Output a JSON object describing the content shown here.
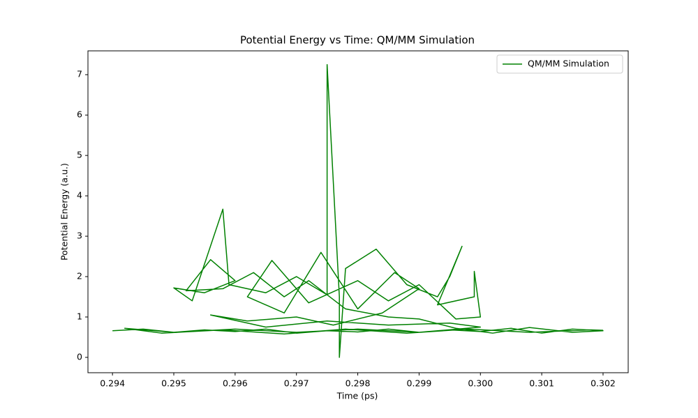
{
  "chart_data": {
    "type": "line",
    "title": "Potential Energy vs Time: QM/MM Simulation",
    "xlabel": "Time (ps)",
    "ylabel": "Potential Energy (a.u.)",
    "x": [
      0.294,
      0.2945,
      0.295,
      0.2955,
      0.296,
      0.2965,
      0.297,
      0.2975,
      0.298,
      0.2985,
      0.299,
      0.2995,
      0.3,
      0.3005,
      0.301,
      0.3015,
      0.302,
      0.3015,
      0.3008,
      0.3002,
      0.2996,
      0.299,
      0.2985,
      0.2978,
      0.2972,
      0.2968,
      0.2963,
      0.2958,
      0.2952,
      0.2956,
      0.296,
      0.2955,
      0.295,
      0.2953,
      0.2958,
      0.2959,
      0.2965,
      0.297,
      0.2975,
      0.2975,
      0.2977,
      0.2977,
      0.2978,
      0.2983,
      0.2988,
      0.2993,
      0.2995,
      0.2997,
      0.2993,
      0.2999,
      0.2999,
      0.3,
      0.2996,
      0.299,
      0.2985,
      0.298,
      0.2972,
      0.2966,
      0.2962,
      0.2968,
      0.2974,
      0.298,
      0.2986,
      0.299,
      0.2984,
      0.2976,
      0.297,
      0.2962,
      0.2956,
      0.2965,
      0.2975,
      0.2985,
      0.2995,
      0.3,
      0.299,
      0.298,
      0.297,
      0.296,
      0.295,
      0.2942,
      0.2948,
      0.2958,
      0.2968,
      0.2978,
      0.2988,
      0.2998,
      0.3008,
      0.3018,
      0.302
    ],
    "series": [
      {
        "name": "QM/MM Simulation",
        "color": "#008000",
        "values": [
          0.66,
          0.7,
          0.62,
          0.68,
          0.64,
          0.7,
          0.6,
          0.66,
          0.63,
          0.7,
          0.62,
          0.68,
          0.64,
          0.72,
          0.6,
          0.7,
          0.66,
          0.62,
          0.74,
          0.6,
          0.72,
          0.95,
          1.0,
          1.2,
          1.9,
          1.5,
          2.1,
          1.7,
          1.65,
          2.42,
          1.9,
          1.6,
          1.72,
          1.4,
          3.67,
          1.8,
          1.6,
          2.0,
          1.55,
          7.25,
          1.5,
          0.0,
          2.2,
          2.68,
          1.8,
          1.5,
          2.0,
          2.75,
          1.3,
          1.5,
          2.13,
          1.0,
          0.95,
          1.8,
          1.4,
          1.9,
          1.35,
          2.4,
          1.5,
          1.1,
          2.6,
          1.2,
          2.1,
          1.7,
          1.1,
          0.8,
          1.0,
          0.9,
          1.05,
          0.75,
          0.9,
          0.8,
          0.85,
          0.75,
          0.62,
          0.7,
          0.62,
          0.7,
          0.62,
          0.72,
          0.6,
          0.68,
          0.58,
          0.7,
          0.6,
          0.7,
          0.62,
          0.68,
          0.67
        ]
      }
    ],
    "xlim": [
      0.2936,
      0.30241
    ],
    "ylim": [
      -0.38,
      7.59
    ],
    "xticks": [
      0.294,
      0.295,
      0.296,
      0.297,
      0.298,
      0.299,
      {
        "value": 0.3,
        "label": "0.300"
      },
      0.301,
      0.302
    ],
    "yticks": [
      0,
      1,
      2,
      3,
      4,
      5,
      6,
      7
    ],
    "legend": "upper right",
    "grid": false
  }
}
